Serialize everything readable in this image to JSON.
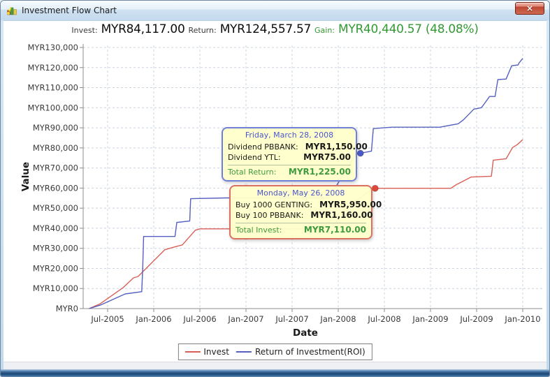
{
  "window": {
    "title": "Investment Flow Chart",
    "close_glyph": "×"
  },
  "header": {
    "invest_label": "Invest:",
    "invest_value": "MYR84,117.00",
    "return_label": "Return:",
    "return_value": "MYR124,557.57",
    "gain_label": "Gain:",
    "gain_value": "MYR40,440.57 (48.08%)",
    "gain_color": "#339933"
  },
  "tooltips": [
    {
      "title": "Friday, March 28, 2008",
      "rows": [
        {
          "label": "Dividend PBBANK:",
          "value": "MYR1,150.00"
        },
        {
          "label": "Dividend YTL:",
          "value": "MYR75.00"
        }
      ],
      "total_label": "Total Return:",
      "total_value": "MYR1,225.00",
      "border_color": "#7080d8"
    },
    {
      "title": "Monday, May 26, 2008",
      "rows": [
        {
          "label": "Buy 1000 GENTING:",
          "value": "MYR5,950.00"
        },
        {
          "label": "Buy 100 PBBANK:",
          "value": "MYR1,160.00"
        }
      ],
      "total_label": "Total Invest:",
      "total_value": "MYR7,110.00",
      "border_color": "#dd6f63"
    }
  ],
  "chart_data": {
    "type": "line",
    "title": "",
    "xlabel": "Date",
    "ylabel": "Value",
    "xlim": [
      2005.23,
      2010.2
    ],
    "ylim": [
      0,
      130000
    ],
    "grid": true,
    "legend_position": "bottom",
    "x_ticks": [
      {
        "v": 2005.5,
        "label": "Jul-2005"
      },
      {
        "v": 2006.0,
        "label": "Jan-2006"
      },
      {
        "v": 2006.5,
        "label": "Jul-2006"
      },
      {
        "v": 2007.0,
        "label": "Jan-2007"
      },
      {
        "v": 2007.5,
        "label": "Jul-2007"
      },
      {
        "v": 2008.0,
        "label": "Jan-2008"
      },
      {
        "v": 2008.5,
        "label": "Jul-2008"
      },
      {
        "v": 2009.0,
        "label": "Jan-2009"
      },
      {
        "v": 2009.5,
        "label": "Jul-2009"
      },
      {
        "v": 2010.0,
        "label": "Jan-2010"
      }
    ],
    "y_ticks": [
      {
        "v": 0,
        "label": "MYR0"
      },
      {
        "v": 10000,
        "label": "MYR10,000"
      },
      {
        "v": 20000,
        "label": "MYR20,000"
      },
      {
        "v": 30000,
        "label": "MYR30,000"
      },
      {
        "v": 40000,
        "label": "MYR40,000"
      },
      {
        "v": 50000,
        "label": "MYR50,000"
      },
      {
        "v": 60000,
        "label": "MYR60,000"
      },
      {
        "v": 70000,
        "label": "MYR70,000"
      },
      {
        "v": 80000,
        "label": "MYR80,000"
      },
      {
        "v": 90000,
        "label": "MYR90,000"
      },
      {
        "v": 100000,
        "label": "MYR100,000"
      },
      {
        "v": 110000,
        "label": "MYR110,000"
      },
      {
        "v": 120000,
        "label": "MYR120,000"
      },
      {
        "v": 130000,
        "label": "MYR130,000"
      }
    ],
    "series": [
      {
        "name": "Invest",
        "color": "#d95f57",
        "points": [
          [
            2005.3,
            0
          ],
          [
            2005.42,
            2400
          ],
          [
            2005.67,
            10500
          ],
          [
            2005.78,
            15300
          ],
          [
            2005.83,
            16000
          ],
          [
            2006.12,
            29300
          ],
          [
            2006.25,
            31000
          ],
          [
            2006.31,
            31700
          ],
          [
            2006.45,
            39000
          ],
          [
            2006.5,
            39700
          ],
          [
            2007.8,
            39700
          ],
          [
            2008.36,
            59300
          ],
          [
            2008.4,
            59900
          ],
          [
            2009.22,
            59900
          ],
          [
            2009.28,
            61700
          ],
          [
            2009.44,
            65500
          ],
          [
            2009.66,
            65900
          ],
          [
            2009.68,
            73900
          ],
          [
            2009.82,
            74600
          ],
          [
            2009.89,
            80200
          ],
          [
            2009.94,
            81600
          ],
          [
            2010.0,
            84117
          ]
        ]
      },
      {
        "name": "Return of Investment(ROI)",
        "color": "#5560c0",
        "points": [
          [
            2005.3,
            0
          ],
          [
            2005.42,
            1700
          ],
          [
            2005.69,
            7300
          ],
          [
            2005.87,
            8400
          ],
          [
            2005.88,
            19900
          ],
          [
            2005.89,
            35900
          ],
          [
            2006.23,
            35900
          ],
          [
            2006.25,
            42900
          ],
          [
            2006.39,
            43600
          ],
          [
            2006.4,
            54700
          ],
          [
            2006.78,
            55100
          ],
          [
            2007.9,
            55100
          ],
          [
            2008.19,
            77000
          ],
          [
            2008.24,
            77350
          ],
          [
            2008.36,
            78400
          ],
          [
            2008.38,
            89600
          ],
          [
            2008.58,
            90300
          ],
          [
            2009.1,
            90300
          ],
          [
            2009.3,
            92000
          ],
          [
            2009.36,
            94100
          ],
          [
            2009.47,
            99300
          ],
          [
            2009.55,
            100000
          ],
          [
            2009.57,
            101100
          ],
          [
            2009.64,
            105600
          ],
          [
            2009.7,
            105600
          ],
          [
            2009.73,
            114000
          ],
          [
            2009.82,
            114300
          ],
          [
            2009.88,
            120900
          ],
          [
            2009.95,
            121300
          ],
          [
            2009.96,
            122300
          ],
          [
            2010.0,
            124557
          ]
        ]
      }
    ],
    "markers": [
      {
        "series": "roi",
        "date": 2008.24,
        "value": 77350,
        "color": "#4a5ac8"
      },
      {
        "series": "invest",
        "date": 2008.4,
        "value": 59900,
        "color": "#e2483a"
      }
    ]
  }
}
